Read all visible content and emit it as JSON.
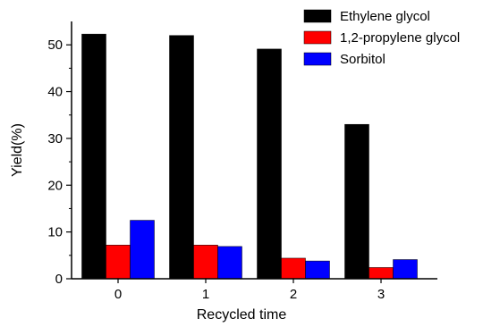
{
  "chart_data": {
    "type": "bar",
    "categories": [
      "0",
      "1",
      "2",
      "3"
    ],
    "series": [
      {
        "name": "Ethylene glycol",
        "color": "#000000",
        "values": [
          52.3,
          52.0,
          49.1,
          33.0
        ]
      },
      {
        "name": "1,2-propylene glycol",
        "color": "#ff0000",
        "values": [
          7.2,
          7.2,
          4.4,
          2.4
        ]
      },
      {
        "name": "Sorbitol",
        "color": "#0000ff",
        "values": [
          12.5,
          6.9,
          3.8,
          4.1
        ]
      }
    ],
    "xlabel": "Recycled time",
    "ylabel": "Yield(%)",
    "ylim": [
      0,
      55
    ],
    "yticks": [
      "0",
      "10",
      "20",
      "30",
      "40",
      "50"
    ],
    "legend_position": "top-right",
    "grid": false
  }
}
